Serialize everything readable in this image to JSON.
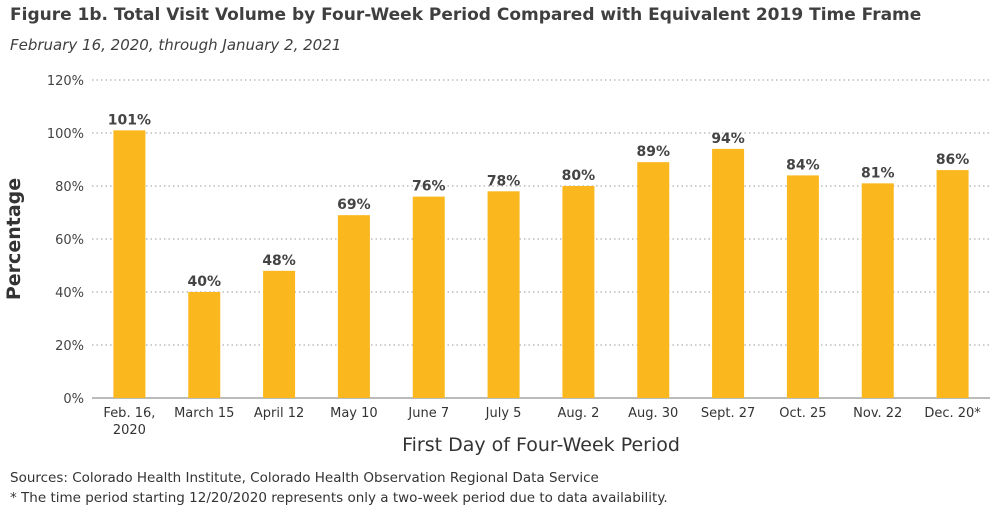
{
  "title": "Figure 1b. Total Visit Volume by Four-Week Period Compared with Equivalent 2019 Time Frame",
  "subtitle": "February 16, 2020, through January 2, 2021",
  "sources": "Sources: Colorado Health Institute, Colorado Health Observation Regional Data Service",
  "footnote": "* The time period starting 12/20/2020 represents only a two-week period due to data availability.",
  "colors": {
    "bar": "#fbb81e",
    "grid": "#999999",
    "axis": "#777777"
  },
  "chart_data": {
    "type": "bar",
    "xlabel": "First Day of Four-Week Period",
    "ylabel": "Percentage",
    "ylim": [
      0,
      120
    ],
    "ytick_step": 20,
    "ytick_suffix": "%",
    "grid": true,
    "categories": [
      "Feb. 16,\n2020",
      "March 15",
      "April 12",
      "May 10",
      "June 7",
      "July 5",
      "Aug. 2",
      "Aug. 30",
      "Sept. 27",
      "Oct. 25",
      "Nov. 22",
      "Dec. 20*"
    ],
    "values": [
      101,
      40,
      48,
      69,
      76,
      78,
      80,
      89,
      94,
      84,
      81,
      86
    ],
    "value_labels": [
      "101%",
      "40%",
      "48%",
      "69%",
      "76%",
      "78%",
      "80%",
      "89%",
      "94%",
      "84%",
      "81%",
      "86%"
    ]
  }
}
